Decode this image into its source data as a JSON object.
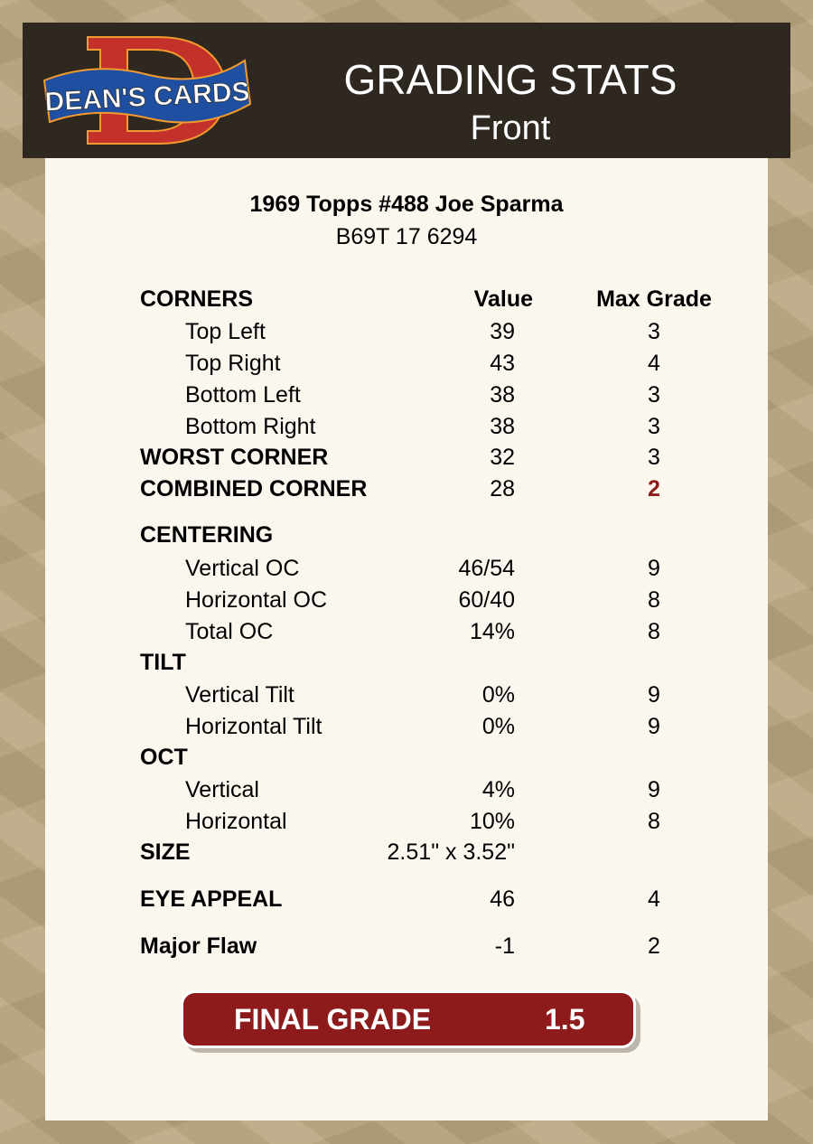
{
  "header": {
    "logo_text": "DEAN'S CARDS",
    "title": "GRADING STATS",
    "subtitle": "Front"
  },
  "card": {
    "name": "1969 Topps #488 Joe Sparma",
    "id": "B69T 17 6294"
  },
  "columns": {
    "value": "Value",
    "max_grade": "Max Grade"
  },
  "colors": {
    "accent": "#8e1b1b",
    "header_bg": "#2f2820",
    "panel_bg": "#fcf7ee"
  },
  "rows": [
    {
      "label": "CORNERS",
      "bold": true,
      "header": true
    },
    {
      "label": "Top Left",
      "value": "39",
      "max": "3"
    },
    {
      "label": "Top Right",
      "value": "43",
      "max": "4"
    },
    {
      "label": "Bottom Left",
      "value": "38",
      "max": "3"
    },
    {
      "label": "Bottom Right",
      "value": "38",
      "max": "3"
    },
    {
      "label": "WORST CORNER",
      "bold": true,
      "value": "32",
      "max": "3"
    },
    {
      "label": "COMBINED CORNER",
      "bold": true,
      "value": "28",
      "max": "2",
      "highlight": true
    },
    {
      "label": "CENTERING",
      "bold": true
    },
    {
      "label": "Vertical OC",
      "value": "46/54",
      "max": "9"
    },
    {
      "label": "Horizontal OC",
      "value": "60/40",
      "max": "8"
    },
    {
      "label": "Total OC",
      "value": "14%",
      "max": "8"
    },
    {
      "label": "TILT",
      "bold": true
    },
    {
      "label": "Vertical Tilt",
      "value": "0%",
      "max": "9"
    },
    {
      "label": "Horizontal Tilt",
      "value": "0%",
      "max": "9"
    },
    {
      "label": "OCT",
      "bold": true
    },
    {
      "label": "Vertical",
      "value": "4%",
      "max": "9"
    },
    {
      "label": "Horizontal",
      "value": "10%",
      "max": "8"
    },
    {
      "label": "SIZE",
      "bold": true,
      "value": "2.51\" x 3.52\""
    },
    {
      "label": "EYE APPEAL",
      "bold": true,
      "value": "46",
      "max": "4"
    },
    {
      "label": "Major Flaw",
      "bold": true,
      "value": "-1",
      "max": "2"
    }
  ],
  "final": {
    "label": "FINAL GRADE",
    "value": "1.5"
  }
}
